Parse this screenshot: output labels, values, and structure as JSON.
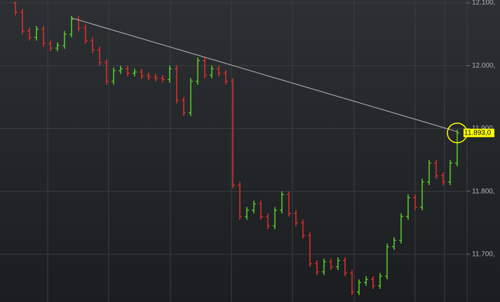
{
  "chart_data": {
    "type": "ohlc",
    "up_color": "#5cd02c",
    "down_color": "#e0302a",
    "open": [
      12100,
      12085,
      12055,
      12045,
      12058,
      12035,
      12028,
      12032,
      12050,
      12074,
      12060,
      12040,
      12025,
      12005,
      11975,
      11992,
      11995,
      11988,
      11990,
      11984,
      11982,
      11980,
      11978,
      11995,
      11945,
      11925,
      11975,
      12008,
      11985,
      11995,
      11988,
      11975,
      11810,
      11760,
      11770,
      11780,
      11760,
      11745,
      11770,
      11795,
      11765,
      11750,
      11730,
      11685,
      11672,
      11688,
      11680,
      11690,
      11670,
      11640,
      11655,
      11660,
      11650,
      11665,
      11712,
      11722,
      11760,
      11790,
      11775,
      11815,
      11845,
      11825,
      11815,
      11845
    ],
    "high": [
      12102,
      12090,
      12060,
      12063,
      12063,
      12040,
      12037,
      12055,
      12079,
      12079,
      12065,
      12045,
      12030,
      12010,
      11997,
      12000,
      12000,
      11995,
      11995,
      11989,
      11987,
      11985,
      12000,
      12000,
      11950,
      11980,
      12013,
      12013,
      12000,
      12000,
      11993,
      11980,
      11815,
      11775,
      11785,
      11785,
      11765,
      11775,
      11800,
      11800,
      11770,
      11755,
      11735,
      11690,
      11693,
      11693,
      11695,
      11695,
      11675,
      11660,
      11665,
      11665,
      11670,
      11717,
      11727,
      11765,
      11795,
      11795,
      11820,
      11850,
      11850,
      11830,
      11850,
      11898
    ],
    "low": [
      12080,
      12050,
      12040,
      12040,
      12030,
      12023,
      12023,
      12027,
      12045,
      12055,
      12035,
      12020,
      12000,
      11970,
      11970,
      11987,
      11983,
      11983,
      11979,
      11977,
      11975,
      11973,
      11973,
      11940,
      11920,
      11920,
      11970,
      11980,
      11980,
      11983,
      11970,
      11805,
      11755,
      11755,
      11765,
      11755,
      11740,
      11740,
      11765,
      11760,
      11745,
      11725,
      11680,
      11667,
      11667,
      11675,
      11675,
      11665,
      11635,
      11635,
      11650,
      11645,
      11645,
      11660,
      11707,
      11717,
      11755,
      11770,
      11770,
      11810,
      11820,
      11810,
      11810,
      11840
    ],
    "close": [
      12085,
      12055,
      12045,
      12058,
      12035,
      12028,
      12032,
      12050,
      12074,
      12060,
      12040,
      12025,
      12005,
      11975,
      11992,
      11995,
      11988,
      11990,
      11984,
      11982,
      11980,
      11978,
      11995,
      11945,
      11925,
      11975,
      12008,
      11985,
      11995,
      11988,
      11975,
      11810,
      11760,
      11770,
      11780,
      11760,
      11745,
      11770,
      11795,
      11765,
      11750,
      11730,
      11685,
      11672,
      11688,
      11680,
      11690,
      11670,
      11640,
      11655,
      11660,
      11650,
      11665,
      11712,
      11722,
      11760,
      11790,
      11775,
      11815,
      11845,
      11825,
      11815,
      11845,
      11893
    ],
    "ylim": [
      11624,
      12104.5
    ],
    "yticks": [
      {
        "value": 11700,
        "label": "11.700,"
      },
      {
        "value": 11800,
        "label": "11.800,"
      },
      {
        "value": 11900,
        "label": "11.900,"
      },
      {
        "value": 12000,
        "label": "12.000,"
      },
      {
        "value": 12100,
        "label": "12.100,"
      }
    ],
    "grid": true,
    "trendline": {
      "start": [
        8,
        12076
      ],
      "end": [
        63,
        11895
      ],
      "color": "#b8b8b8"
    },
    "last_price": {
      "value": 11893,
      "label": "11.893,0",
      "color": "#ffff00"
    }
  }
}
